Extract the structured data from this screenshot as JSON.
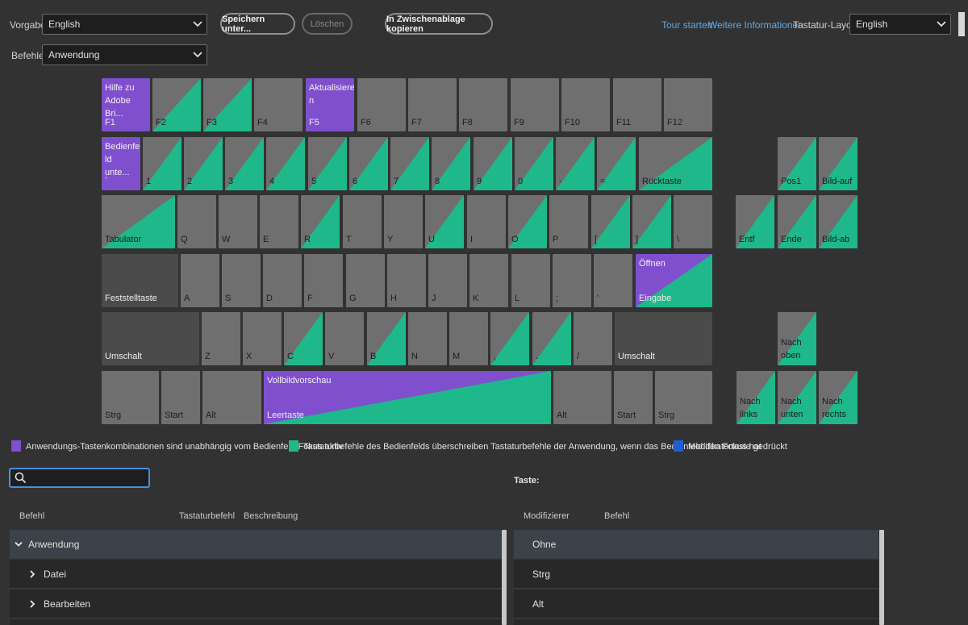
{
  "toolbar": {
    "preset_label": "Vorgabe:",
    "preset_value": "English",
    "commands_label": "Befehle:",
    "commands_value": "Anwendung",
    "save_as": "Speichern unter...",
    "delete": "Löschen",
    "copy_clipboard": "In Zwischenablage kopieren",
    "tour": "Tour starten",
    "more_info": "Weitere Informationen",
    "layout_label": "Tastatur-Layout:",
    "layout_value": "English"
  },
  "keys": {
    "f1": {
      "title": "Hilfe zu Adobe Bri...",
      "label": "F1"
    },
    "f2": "F2",
    "f3": "F3",
    "f4": "F4",
    "f5": {
      "title": "Aktualisiere n",
      "label": "F5"
    },
    "f6": "F6",
    "f7": "F7",
    "f8": "F8",
    "f9": "F9",
    "f10": "F10",
    "f11": "F11",
    "f12": "F12",
    "backtick": {
      "title": "Bedienfe ld unte...",
      "label": "`"
    },
    "n1": "1",
    "n2": "2",
    "n3": "3",
    "n4": "4",
    "n5": "5",
    "n6": "6",
    "n7": "7",
    "n8": "8",
    "n9": "9",
    "n0": "0",
    "minus": "-",
    "equals": "=",
    "backspace": "Rücktaste",
    "home": "Pos1",
    "pageup": "Bild-auf",
    "tab": "Tabulator",
    "q": "Q",
    "w": "W",
    "e": "E",
    "r": "R",
    "t": "T",
    "y": "Y",
    "u": "U",
    "i": "I",
    "o": "O",
    "p": "P",
    "lbracket": "[",
    "rbracket": "]",
    "backslash": "\\",
    "delete": "Entf",
    "end": "Ende",
    "pagedown": "Bild-ab",
    "capslock": "Feststelltaste",
    "a": "A",
    "s": "S",
    "d": "D",
    "f": "F",
    "g": "G",
    "h": "H",
    "j": "J",
    "k": "K",
    "l": "L",
    "semicolon": ";",
    "quote": "'",
    "enter": {
      "title": "Öffnen",
      "label": "Eingabe"
    },
    "shift_left": "Umschalt",
    "z": "Z",
    "x": "X",
    "c": "C",
    "v": "V",
    "b": "B",
    "n": "N",
    "m": "M",
    "comma": ",",
    "period": ".",
    "slash": "/",
    "shift_right": "Umschalt",
    "arrow_up": "Nach oben",
    "ctrl_left": "Strg",
    "start_left": "Start",
    "alt_left": "Alt",
    "space": {
      "title": "Vollbildvorschau",
      "label": "Leertaste"
    },
    "alt_right": "Alt",
    "start_right": "Start",
    "ctrl_right": "Strg",
    "arrow_left": "Nach links",
    "arrow_down": "Nach unten",
    "arrow_right": "Nach rechts"
  },
  "legend": {
    "app_shortcuts": "Anwendungs-Tastenkombinationen sind unabhängig vom Bedienfeld-Fokus aktiv",
    "panel_shortcuts": "Tastaturbefehle des Bedienfelds überschreiben Tastaturbefehle der Anwendung, wenn das Bedienfeld den Fokus hat",
    "modifier_pressed": "Modifikatortaste gedrückt"
  },
  "colors": {
    "app": "#7f4fce",
    "panel": "#1fb88a",
    "modifier": "#1f5fd0",
    "key": "#6f6f6f",
    "key_dark": "#4b4b4b",
    "accent": "#4a8fd8"
  },
  "search": {
    "placeholder": ""
  },
  "key_panel": {
    "title": "Taste:"
  },
  "commands_table": {
    "headers": {
      "command": "Befehl",
      "shortcut": "Tastaturbefehl",
      "description": "Beschreibung"
    },
    "rows": [
      {
        "label": "Anwendung",
        "expanded": true
      },
      {
        "label": "Datei",
        "expanded": false
      },
      {
        "label": "Bearbeiten",
        "expanded": false
      }
    ]
  },
  "modifier_table": {
    "headers": {
      "modifier": "Modifizierer",
      "command": "Befehl"
    },
    "rows": [
      "Ohne",
      "Strg",
      "Alt"
    ]
  }
}
